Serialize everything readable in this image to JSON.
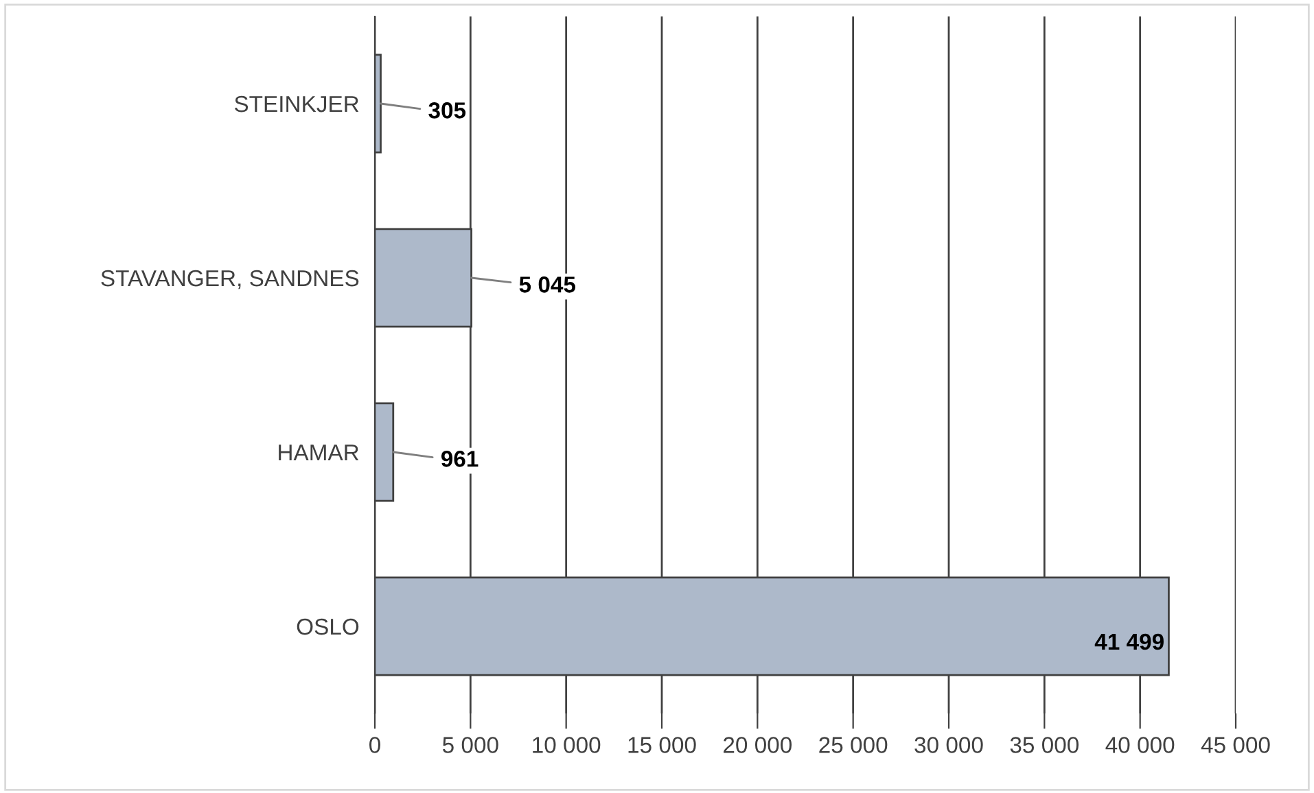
{
  "chart_data": {
    "type": "bar",
    "orientation": "horizontal",
    "categories": [
      "STEINKJER",
      "STAVANGER, SANDNES",
      "HAMAR",
      "OSLO"
    ],
    "values": [
      305,
      5045,
      961,
      41499
    ],
    "value_labels": [
      "305",
      "5 045",
      "961",
      "41 499"
    ],
    "color": "#adb9ca",
    "xlim": [
      0,
      45000
    ],
    "xticks": [
      0,
      {
        "value": 5000,
        "label": "5 000"
      },
      {
        "value": 10000,
        "label": "10 000"
      },
      {
        "value": 15000,
        "label": "15 000"
      },
      {
        "value": 20000,
        "label": "20 000"
      },
      {
        "value": 25000,
        "label": "25 000"
      },
      {
        "value": 30000,
        "label": "30 000"
      },
      {
        "value": 35000,
        "label": "35 000"
      },
      {
        "value": 40000,
        "label": "40 000"
      },
      {
        "value": 45000,
        "label": "45 000"
      }
    ],
    "grid": "x",
    "legend": false
  }
}
